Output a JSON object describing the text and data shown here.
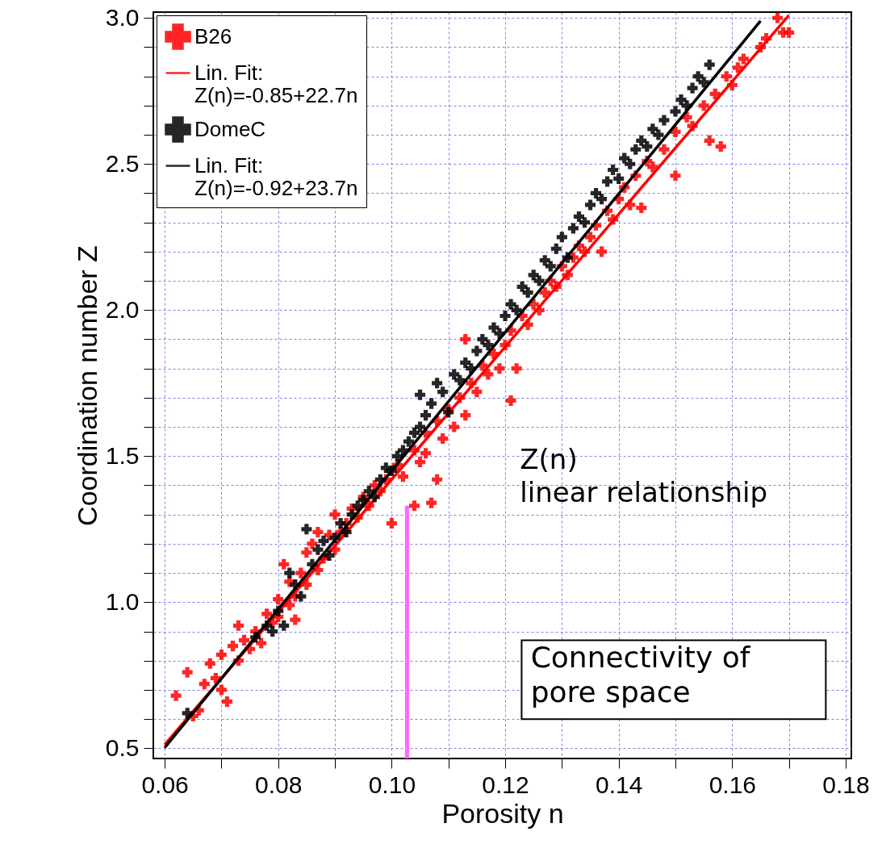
{
  "chart_data": {
    "type": "scatter",
    "xlabel": "Porosity n",
    "ylabel": "Coordination number Z",
    "xlim": [
      0.058,
      0.181
    ],
    "ylim": [
      0.465,
      3.02
    ],
    "xticks": [
      0.06,
      {
        "value": 0.07,
        "label": null
      },
      "0.08",
      {
        "value": 0.09,
        "label": null
      },
      {
        "value": 0.1,
        "label": "0.10"
      },
      {
        "value": 0.11,
        "label": null
      },
      {
        "value": 0.12,
        "label": "0.12"
      },
      {
        "value": 0.13,
        "label": null
      },
      {
        "value": 0.14,
        "label": "0.14"
      },
      {
        "value": 0.15,
        "label": null
      },
      {
        "value": 0.16,
        "label": "0.16"
      },
      {
        "value": 0.17,
        "label": null
      },
      {
        "value": 0.18,
        "label": "0.18"
      }
    ],
    "yticks": [
      {
        "value": 0.5,
        "label": "0.5"
      },
      {
        "value": 0.6,
        "label": null
      },
      {
        "value": 0.7,
        "label": null
      },
      {
        "value": 0.8,
        "label": null
      },
      {
        "value": 0.9,
        "label": null
      },
      {
        "value": 1.0,
        "label": "1.0"
      },
      {
        "value": 1.1,
        "label": null
      },
      {
        "value": 1.2,
        "label": null
      },
      {
        "value": 1.3,
        "label": null
      },
      {
        "value": 1.4,
        "label": null
      },
      {
        "value": 1.5,
        "label": "1.5"
      },
      {
        "value": 1.6,
        "label": null
      },
      {
        "value": 1.7,
        "label": null
      },
      {
        "value": 1.8,
        "label": null
      },
      {
        "value": 1.9,
        "label": null
      },
      {
        "value": 2.0,
        "label": "2.0"
      },
      {
        "value": 2.1,
        "label": null
      },
      {
        "value": 2.2,
        "label": null
      },
      {
        "value": 2.3,
        "label": null
      },
      {
        "value": 2.4,
        "label": null
      },
      {
        "value": 2.5,
        "label": "2.5"
      },
      {
        "value": 2.6,
        "label": null
      },
      {
        "value": 2.7,
        "label": null
      },
      {
        "value": 2.8,
        "label": null
      },
      {
        "value": 2.9,
        "label": null
      },
      {
        "value": 3.0,
        "label": "3.0"
      }
    ],
    "grid": true,
    "legend": "top left",
    "marker": "cross",
    "series": [
      {
        "name": "B26",
        "color": "#ff0000",
        "x": [
          0.062,
          0.064,
          0.065,
          0.066,
          0.067,
          0.068,
          0.069,
          0.07,
          0.071,
          0.07,
          0.072,
          0.073,
          0.073,
          0.074,
          0.075,
          0.076,
          0.077,
          0.078,
          0.079,
          0.08,
          0.08,
          0.081,
          0.082,
          0.082,
          0.083,
          0.083,
          0.084,
          0.085,
          0.085,
          0.086,
          0.087,
          0.087,
          0.088,
          0.089,
          0.09,
          0.09,
          0.091,
          0.092,
          0.093,
          0.094,
          0.095,
          0.096,
          0.097,
          0.098,
          0.099,
          0.1,
          0.101,
          0.102,
          0.104,
          0.104,
          0.105,
          0.106,
          0.107,
          0.108,
          0.106,
          0.108,
          0.109,
          0.11,
          0.111,
          0.112,
          0.113,
          0.113,
          0.114,
          0.115,
          0.116,
          0.117,
          0.118,
          0.119,
          0.12,
          0.121,
          0.121,
          0.122,
          0.123,
          0.124,
          0.125,
          0.126,
          0.127,
          0.128,
          0.129,
          0.13,
          0.131,
          0.132,
          0.133,
          0.134,
          0.135,
          0.136,
          0.137,
          0.138,
          0.139,
          0.14,
          0.141,
          0.142,
          0.143,
          0.144,
          0.145,
          0.146,
          0.148,
          0.15,
          0.15,
          0.152,
          0.153,
          0.155,
          0.156,
          0.157,
          0.158,
          0.159,
          0.16,
          0.161,
          0.162,
          0.165,
          0.166,
          0.168,
          0.169,
          0.17
        ],
        "values": [
          0.68,
          0.76,
          0.61,
          0.63,
          0.72,
          0.79,
          0.74,
          0.7,
          0.66,
          0.82,
          0.85,
          0.92,
          0.8,
          0.87,
          0.84,
          0.9,
          0.86,
          0.96,
          0.93,
          1.01,
          0.95,
          1.13,
          0.99,
          1.07,
          1.02,
          0.94,
          1.1,
          1.06,
          1.17,
          1.2,
          1.11,
          1.24,
          1.15,
          1.23,
          1.18,
          1.3,
          1.24,
          1.27,
          1.32,
          1.29,
          1.36,
          1.33,
          1.4,
          1.38,
          1.42,
          1.27,
          1.47,
          1.43,
          1.33,
          1.52,
          1.48,
          1.51,
          1.34,
          1.42,
          1.58,
          1.62,
          1.56,
          1.66,
          1.6,
          1.7,
          1.64,
          1.9,
          1.75,
          1.72,
          1.81,
          1.78,
          1.85,
          1.8,
          1.88,
          1.69,
          1.93,
          1.8,
          1.98,
          1.95,
          2.02,
          2.0,
          2.06,
          2.1,
          2.08,
          2.15,
          2.12,
          2.18,
          2.22,
          2.2,
          2.25,
          2.29,
          2.2,
          2.34,
          2.31,
          2.38,
          2.42,
          2.36,
          2.46,
          2.35,
          2.51,
          2.49,
          2.55,
          2.46,
          2.61,
          2.66,
          2.63,
          2.7,
          2.58,
          2.74,
          2.56,
          2.8,
          2.77,
          2.83,
          2.86,
          2.9,
          2.93,
          3.0,
          2.95,
          2.95
        ]
      },
      {
        "name": "Lin. Fit:\nZ(n)=-0.85+22.7n",
        "type": "line",
        "marker": "none",
        "color": "#ff0000",
        "x": [
          0.06,
          0.17
        ],
        "values": [
          0.512,
          3.009
        ]
      },
      {
        "name": "DomeC",
        "color": "#000000",
        "x": [
          0.064,
          0.076,
          0.078,
          0.079,
          0.08,
          0.081,
          0.082,
          0.083,
          0.084,
          0.085,
          0.086,
          0.087,
          0.088,
          0.089,
          0.09,
          0.091,
          0.092,
          0.093,
          0.094,
          0.095,
          0.096,
          0.097,
          0.098,
          0.099,
          0.1,
          0.101,
          0.102,
          0.103,
          0.104,
          0.105,
          0.105,
          0.106,
          0.107,
          0.108,
          0.109,
          0.11,
          0.111,
          0.112,
          0.113,
          0.114,
          0.115,
          0.116,
          0.117,
          0.118,
          0.119,
          0.12,
          0.121,
          0.122,
          0.123,
          0.124,
          0.125,
          0.126,
          0.127,
          0.128,
          0.129,
          0.13,
          0.131,
          0.132,
          0.133,
          0.134,
          0.135,
          0.136,
          0.137,
          0.138,
          0.139,
          0.14,
          0.141,
          0.142,
          0.143,
          0.144,
          0.145,
          0.146,
          0.147,
          0.148,
          0.15,
          0.151,
          0.152,
          0.153,
          0.154,
          0.155,
          0.156
        ],
        "values": [
          0.62,
          0.88,
          0.92,
          0.9,
          0.97,
          0.92,
          1.1,
          1.06,
          1.02,
          1.25,
          1.13,
          1.18,
          1.21,
          1.16,
          1.22,
          1.27,
          1.24,
          1.3,
          1.33,
          1.35,
          1.38,
          1.36,
          1.42,
          1.46,
          1.45,
          1.5,
          1.52,
          1.55,
          1.58,
          1.6,
          1.71,
          1.64,
          1.68,
          1.75,
          1.72,
          1.65,
          1.78,
          1.76,
          1.82,
          1.8,
          1.86,
          1.9,
          1.88,
          1.94,
          1.92,
          1.98,
          2.02,
          2.0,
          2.08,
          2.06,
          2.12,
          2.1,
          2.17,
          2.15,
          2.21,
          2.25,
          2.18,
          2.28,
          2.32,
          2.3,
          2.36,
          2.4,
          2.38,
          2.44,
          2.48,
          2.45,
          2.52,
          2.5,
          2.55,
          2.58,
          2.56,
          2.62,
          2.6,
          2.65,
          2.68,
          2.72,
          2.7,
          2.76,
          2.8,
          2.78,
          2.84
        ]
      },
      {
        "name": "Lin. Fit:\nZ(n)=-0.92+23.7n",
        "type": "line",
        "marker": "none",
        "color": "#000000",
        "x": [
          0.06,
          0.165
        ],
        "values": [
          0.502,
          2.99
        ]
      },
      {
        "type": "line",
        "color": "#ff66ff",
        "marker": "none",
        "x": [
          0.1027,
          0.1027
        ],
        "values": [
          0.465,
          1.33
        ]
      }
    ],
    "annotations": [
      "Z(n)\nlinear relationship",
      "Connectivity of\npore space"
    ]
  }
}
